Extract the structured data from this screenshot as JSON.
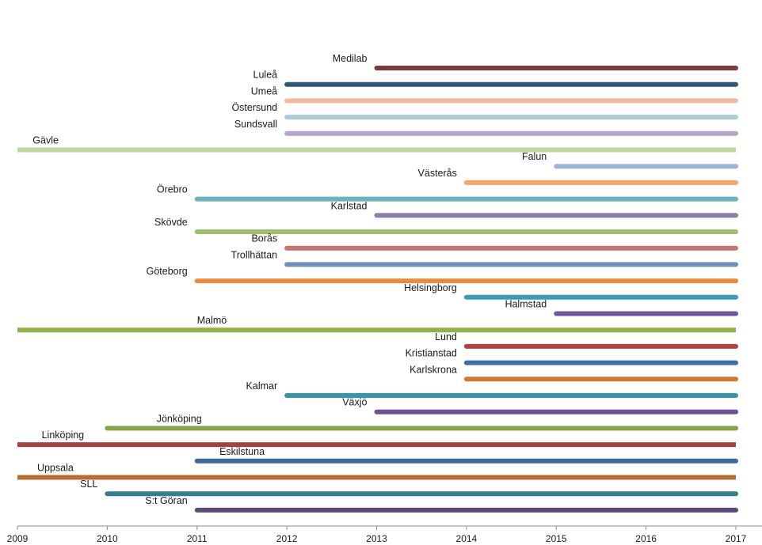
{
  "chart_data": {
    "type": "timeline",
    "title": "",
    "xlabel": "",
    "ylabel": "",
    "xlim": [
      2009,
      2017
    ],
    "x_ticks": [
      2009,
      2010,
      2011,
      2012,
      2013,
      2014,
      2015,
      2016,
      2017
    ],
    "grid": false,
    "legend": "none",
    "series": [
      {
        "name": "Medilab",
        "start": 2013,
        "end": 2017,
        "color": "#7B3B3B"
      },
      {
        "name": "Luleå",
        "start": 2012,
        "end": 2017,
        "color": "#2E5A78"
      },
      {
        "name": "Umeå",
        "start": 2012,
        "end": 2017,
        "color": "#F4B8A0"
      },
      {
        "name": "Östersund",
        "start": 2012,
        "end": 2017,
        "color": "#A9CCD8"
      },
      {
        "name": "Sundsvall",
        "start": 2012,
        "end": 2017,
        "color": "#B4A6C8"
      },
      {
        "name": "Gävle",
        "start": 2008.9,
        "end": 2017,
        "color": "#C0D6A0",
        "label_year": 2009.17
      },
      {
        "name": "Falun",
        "start": 2015,
        "end": 2017,
        "color": "#9FB3D6"
      },
      {
        "name": "Västerås",
        "start": 2014,
        "end": 2017,
        "color": "#F5A46C"
      },
      {
        "name": "Örebro",
        "start": 2011,
        "end": 2017,
        "color": "#6FB1BE"
      },
      {
        "name": "Karlstad",
        "start": 2013,
        "end": 2017,
        "color": "#8E7CAD"
      },
      {
        "name": "Skövde",
        "start": 2011,
        "end": 2017,
        "color": "#9DC06A"
      },
      {
        "name": "Borås",
        "start": 2012,
        "end": 2017,
        "color": "#C77670"
      },
      {
        "name": "Trollhättan",
        "start": 2012,
        "end": 2017,
        "color": "#6C8FBD"
      },
      {
        "name": "Göteborg",
        "start": 2011,
        "end": 2017,
        "color": "#E98C40"
      },
      {
        "name": "Helsingborg",
        "start": 2014,
        "end": 2017,
        "color": "#3D9BB3"
      },
      {
        "name": "Halmstad",
        "start": 2015,
        "end": 2017,
        "color": "#7355A0"
      },
      {
        "name": "Malmö",
        "start": 2008.9,
        "end": 2017,
        "color": "#8FB14C",
        "label_year": 2011
      },
      {
        "name": "Lund",
        "start": 2014,
        "end": 2017,
        "color": "#B0443E"
      },
      {
        "name": "Kristianstad",
        "start": 2014,
        "end": 2017,
        "color": "#3D6EA8"
      },
      {
        "name": "Karlskrona",
        "start": 2014,
        "end": 2017,
        "color": "#D07B3A"
      },
      {
        "name": "Kalmar",
        "start": 2012,
        "end": 2017,
        "color": "#3696AC"
      },
      {
        "name": "Växjö",
        "start": 2013,
        "end": 2017,
        "color": "#6E5390"
      },
      {
        "name": "Jönköping",
        "start": 2010,
        "end": 2017,
        "color": "#86A34A",
        "label_year": 2010.55
      },
      {
        "name": "Linköping",
        "start": 2008.9,
        "end": 2017,
        "color": "#A7413F",
        "label_year": 2009.27
      },
      {
        "name": "Eskilstuna",
        "start": 2011,
        "end": 2017,
        "color": "#3D6A99",
        "label_year": 2011.25
      },
      {
        "name": "Uppsala",
        "start": 2008.9,
        "end": 2017,
        "color": "#B86E33",
        "label_year": 2009.22
      },
      {
        "name": "SLL",
        "start": 2010,
        "end": 2017,
        "color": "#367E8E"
      },
      {
        "name": "S:t Göran",
        "start": 2011,
        "end": 2017,
        "color": "#5C4A78"
      }
    ]
  }
}
